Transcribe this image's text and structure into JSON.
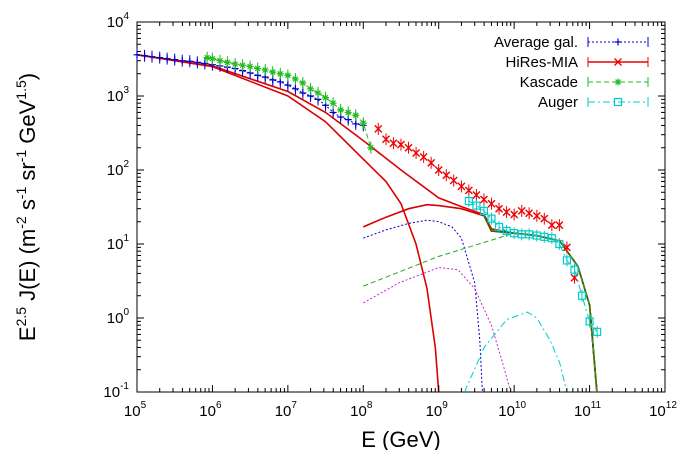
{
  "chart_data": {
    "type": "line",
    "xscale": "log",
    "yscale": "log",
    "xlim": [
      100000,
      1000000000000
    ],
    "ylim": [
      0.1,
      10000
    ],
    "xlabel": "E (GeV)",
    "ylabel_parts": {
      "main": "E",
      "sup1": "2.5",
      "mid": " J(E) (m",
      "sup2": "-2",
      "s_unit": " s",
      "sup3": "-1",
      "sr_unit": " sr",
      "sup4": "-1",
      "gev_unit": " GeV",
      "sup5": "1.5",
      "close": ")"
    },
    "x_ticks": [
      {
        "base": "10",
        "exp": "5",
        "value": 100000
      },
      {
        "base": "10",
        "exp": "6",
        "value": 1000000
      },
      {
        "base": "10",
        "exp": "7",
        "value": 10000000
      },
      {
        "base": "10",
        "exp": "8",
        "value": 100000000
      },
      {
        "base": "10",
        "exp": "9",
        "value": 1000000000
      },
      {
        "base": "10",
        "exp": "10",
        "value": 10000000000
      },
      {
        "base": "10",
        "exp": "11",
        "value": 100000000000
      },
      {
        "base": "10",
        "exp": "12",
        "value": 1000000000000
      }
    ],
    "y_ticks": [
      {
        "base": "10",
        "exp": "-1",
        "value": 0.1
      },
      {
        "base": "10",
        "exp": "0",
        "value": 1
      },
      {
        "base": "10",
        "exp": "1",
        "value": 10
      },
      {
        "base": "10",
        "exp": "2",
        "value": 100
      },
      {
        "base": "10",
        "exp": "3",
        "value": 1000
      },
      {
        "base": "10",
        "exp": "4",
        "value": 10000
      }
    ],
    "legend_position": "top-right",
    "series": [
      {
        "name": "Average gal.",
        "color": "#0000cc",
        "marker": "plus",
        "line": "dotted",
        "points": [
          [
            100000,
            3600
          ],
          [
            126000,
            3500
          ],
          [
            158000,
            3400
          ],
          [
            200000,
            3300
          ],
          [
            251000,
            3200
          ],
          [
            316000,
            3100
          ],
          [
            398000,
            3000
          ],
          [
            501000,
            2950
          ],
          [
            631000,
            2850
          ],
          [
            794000,
            2750
          ],
          [
            1000000,
            2650
          ],
          [
            1260000,
            2550
          ],
          [
            1580000,
            2450
          ],
          [
            2000000,
            2350
          ],
          [
            2510000,
            2200
          ],
          [
            3160000,
            2050
          ],
          [
            3980000,
            1900
          ],
          [
            5010000,
            1800
          ],
          [
            6310000,
            1650
          ],
          [
            7940000,
            1550
          ],
          [
            10000000,
            1400
          ],
          [
            12600000,
            1250
          ],
          [
            15800000,
            1100
          ],
          [
            20000000,
            1000
          ],
          [
            25100000,
            900
          ],
          [
            31600000,
            750
          ],
          [
            39800000,
            600
          ],
          [
            50100000,
            520
          ],
          [
            63100000,
            480
          ],
          [
            79400000,
            420
          ],
          [
            100000000,
            400
          ]
        ]
      },
      {
        "name": "HiRes-MIA",
        "color": "#ee0000",
        "marker": "x",
        "line": "solid",
        "points": [
          [
            158000000,
            360
          ],
          [
            200000000,
            260
          ],
          [
            251000000,
            230
          ],
          [
            316000000,
            220
          ],
          [
            398000000,
            200
          ],
          [
            501000000,
            170
          ],
          [
            631000000,
            150
          ],
          [
            794000000,
            125
          ],
          [
            1000000000,
            100
          ],
          [
            1260000000,
            85
          ],
          [
            1580000000,
            72
          ],
          [
            2000000000,
            60
          ],
          [
            2510000000,
            53
          ],
          [
            3160000000,
            46
          ],
          [
            3980000000,
            40
          ],
          [
            5010000000,
            35
          ],
          [
            6310000000,
            30
          ],
          [
            7940000000,
            27
          ],
          [
            10000000000,
            25
          ],
          [
            12600000000,
            28
          ],
          [
            15800000000,
            26
          ],
          [
            20000000000,
            24
          ],
          [
            25100000000,
            22
          ],
          [
            31600000000,
            18
          ],
          [
            39800000000,
            18
          ],
          [
            50100000000,
            9
          ],
          [
            63100000000,
            3.5
          ]
        ]
      },
      {
        "name": "Kascade",
        "color": "#22bb22",
        "marker": "star",
        "line": "dashed",
        "points": [
          [
            850000,
            3300
          ],
          [
            1000000,
            3200
          ],
          [
            1260000,
            3000
          ],
          [
            1580000,
            2850
          ],
          [
            2000000,
            2700
          ],
          [
            2510000,
            2600
          ],
          [
            3160000,
            2500
          ],
          [
            3980000,
            2350
          ],
          [
            5010000,
            2250
          ],
          [
            6310000,
            2100
          ],
          [
            7940000,
            2000
          ],
          [
            10000000,
            1900
          ],
          [
            12600000,
            1700
          ],
          [
            15800000,
            1500
          ],
          [
            20000000,
            1250
          ],
          [
            25100000,
            1100
          ],
          [
            31600000,
            950
          ],
          [
            39800000,
            800
          ],
          [
            50100000,
            650
          ],
          [
            63100000,
            600
          ],
          [
            79400000,
            550
          ],
          [
            100000000,
            430
          ],
          [
            126000000,
            200
          ]
        ]
      },
      {
        "name": "Auger",
        "color": "#00cccc",
        "marker": "square",
        "line": "dashdot",
        "points": [
          [
            2510000000,
            38
          ],
          [
            3160000000,
            33
          ],
          [
            3980000000,
            28
          ],
          [
            5010000000,
            22
          ],
          [
            6310000000,
            17
          ],
          [
            7940000000,
            15
          ],
          [
            10000000000,
            14
          ],
          [
            12600000000,
            13.5
          ],
          [
            15800000000,
            13.5
          ],
          [
            20000000000,
            13
          ],
          [
            25100000000,
            12.5
          ],
          [
            31600000000,
            12
          ],
          [
            39800000000,
            10
          ],
          [
            50100000000,
            6
          ],
          [
            63100000000,
            4.5
          ],
          [
            79400000000,
            2
          ],
          [
            100000000000,
            0.9
          ],
          [
            126000000000,
            0.65
          ]
        ]
      }
    ],
    "model_curves": [
      {
        "color": "#dd0000",
        "style": "solid",
        "points": [
          [
            100000,
            3600
          ],
          [
            1000000,
            2550
          ],
          [
            10000000,
            1150
          ],
          [
            31600000,
            600
          ],
          [
            100000000,
            250
          ],
          [
            316000000,
            100
          ],
          [
            1000000000,
            42
          ],
          [
            2000000000,
            32
          ],
          [
            4000000000,
            25
          ],
          [
            5000000000,
            16
          ],
          [
            10000000000,
            14
          ],
          [
            20000000000,
            13
          ],
          [
            40000000000,
            11
          ],
          [
            70000000000,
            5
          ],
          [
            100000000000,
            1.5
          ],
          [
            125000000000,
            0.1
          ]
        ]
      },
      {
        "color": "#dd0000",
        "style": "solid",
        "points": [
          [
            100000,
            3600
          ],
          [
            1000000,
            2500
          ],
          [
            10000000,
            1000
          ],
          [
            31600000,
            450
          ],
          [
            100000000,
            140
          ],
          [
            200000000,
            70
          ],
          [
            316000000,
            35
          ],
          [
            500000000,
            10
          ],
          [
            700000000,
            2.5
          ],
          [
            900000000,
            0.4
          ],
          [
            1000000000,
            0.1
          ]
        ]
      },
      {
        "color": "#dd0000",
        "style": "solid",
        "points": [
          [
            100000000,
            17
          ],
          [
            200000000,
            23
          ],
          [
            400000000,
            30
          ],
          [
            700000000,
            34
          ],
          [
            1000000000,
            33
          ],
          [
            2000000000,
            30
          ],
          [
            4000000000,
            24
          ],
          [
            5000000000,
            15
          ],
          [
            10000000000,
            14
          ],
          [
            20000000000,
            13
          ],
          [
            40000000000,
            11
          ],
          [
            70000000000,
            5
          ],
          [
            100000000000,
            1.5
          ],
          [
            125000000000,
            0.1
          ]
        ]
      },
      {
        "color": "#336600",
        "style": "solid",
        "points": [
          [
            4000000000,
            24
          ],
          [
            5000000000,
            15
          ],
          [
            10000000000,
            14
          ],
          [
            20000000000,
            13
          ],
          [
            40000000000,
            11
          ],
          [
            70000000000,
            5
          ],
          [
            100000000000,
            1.5
          ],
          [
            125000000000,
            0.1
          ]
        ]
      },
      {
        "color": "#0000cc",
        "style": "dotted",
        "points": [
          [
            100000000,
            12
          ],
          [
            200000000,
            15.5
          ],
          [
            400000000,
            19
          ],
          [
            700000000,
            21
          ],
          [
            1000000000,
            20
          ],
          [
            1500000000,
            17
          ],
          [
            2000000000,
            12
          ],
          [
            3000000000,
            3
          ],
          [
            3500000000,
            0.5
          ],
          [
            3800000000,
            0.1
          ]
        ]
      },
      {
        "color": "#22aa22",
        "style": "dashed",
        "points": [
          [
            100000000,
            2.7
          ],
          [
            1000000000,
            6.8
          ],
          [
            10000000000,
            14
          ],
          [
            20000000000,
            13
          ],
          [
            40000000000,
            11
          ],
          [
            70000000000,
            5
          ],
          [
            100000000000,
            1.5
          ],
          [
            125000000000,
            0.1
          ]
        ]
      },
      {
        "color": "#cc22cc",
        "style": "dotted",
        "points": [
          [
            100000000,
            1.6
          ],
          [
            300000000,
            3
          ],
          [
            1000000000,
            4.8
          ],
          [
            1800000000,
            4.5
          ],
          [
            3000000000,
            2.5
          ],
          [
            5000000000,
            0.8
          ],
          [
            7000000000,
            0.25
          ],
          [
            9000000000,
            0.1
          ]
        ]
      },
      {
        "color": "#00cccc",
        "style": "dashdot",
        "points": [
          [
            2200000000,
            0.1
          ],
          [
            4000000000,
            0.4
          ],
          [
            8000000000,
            0.95
          ],
          [
            15000000000,
            1.2
          ],
          [
            20000000000,
            1.0
          ],
          [
            30000000000,
            0.5
          ],
          [
            40000000000,
            0.25
          ],
          [
            50000000000,
            0.1
          ]
        ]
      }
    ]
  }
}
